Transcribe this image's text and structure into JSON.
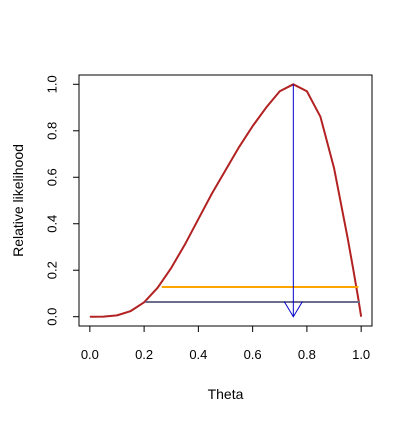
{
  "chart_data": {
    "type": "line",
    "xlabel": "Theta",
    "ylabel": "Relative likelihood",
    "xlim": [
      -0.04,
      1.04
    ],
    "ylim": [
      -0.04,
      1.04
    ],
    "x_ticks": [
      "0.0",
      "0.2",
      "0.4",
      "0.6",
      "0.8",
      "1.0"
    ],
    "y_ticks": [
      "0.0",
      "0.2",
      "0.4",
      "0.6",
      "0.8",
      "1.0"
    ],
    "grid": false,
    "series": [
      {
        "kind": "curve",
        "color": "#b22222",
        "x": [
          0.0,
          0.05,
          0.1,
          0.15,
          0.2,
          0.25,
          0.3,
          0.35,
          0.4,
          0.45,
          0.5,
          0.55,
          0.6,
          0.65,
          0.7,
          0.75,
          0.8,
          0.85,
          0.9,
          0.95,
          0.97,
          0.99,
          1.0
        ],
        "y": [
          0.0,
          0.0005,
          0.0058,
          0.024,
          0.062,
          0.125,
          0.21,
          0.31,
          0.42,
          0.53,
          0.63,
          0.73,
          0.82,
          0.9,
          0.97,
          1.0,
          0.97,
          0.86,
          0.64,
          0.34,
          0.21,
          0.074,
          0.0
        ]
      },
      {
        "kind": "hline",
        "color": "#ffa500",
        "x0": 0.265,
        "x1": 0.99,
        "y": 0.128
      },
      {
        "kind": "hline",
        "color": "#6c6c8c",
        "x0": 0.205,
        "x1": 0.995,
        "y": 0.063
      },
      {
        "kind": "arrow",
        "color": "#0000cc",
        "x": 0.75,
        "y0": 1.0,
        "y1": 0.0
      }
    ]
  }
}
